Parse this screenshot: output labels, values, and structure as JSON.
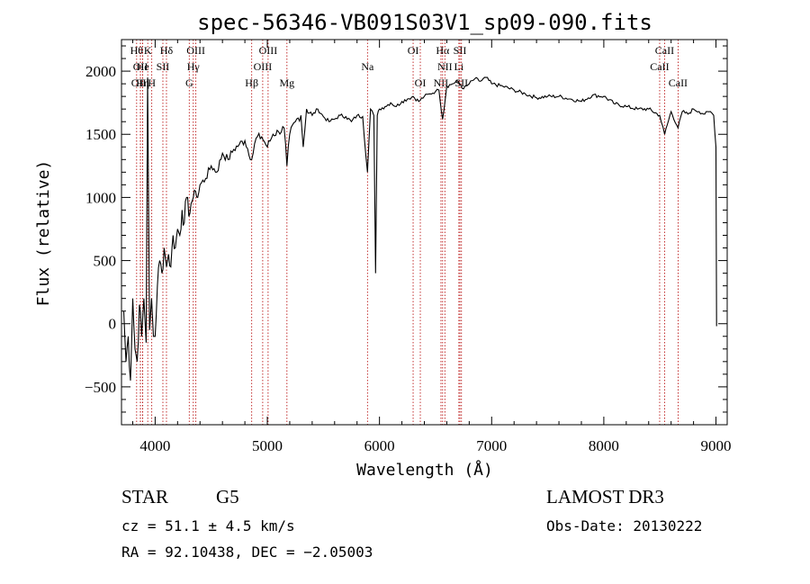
{
  "chart_data": {
    "type": "line",
    "title": "spec-56346-VB091S03V1_sp09-090.fits",
    "xlabel": "Wavelength (Å)",
    "ylabel": "Flux (relative)",
    "xlim": [
      3700,
      9100
    ],
    "ylim": [
      -800,
      2250
    ],
    "xticks": [
      {
        "v": 4000,
        "label": "4000"
      },
      {
        "v": 5000,
        "label": "5000"
      },
      {
        "v": 6000,
        "label": "6000"
      },
      {
        "v": 7000,
        "label": "7000"
      },
      {
        "v": 8000,
        "label": "8000"
      },
      {
        "v": 9000,
        "label": "9000"
      }
    ],
    "yticks": [
      {
        "v": -500,
        "label": "−500"
      },
      {
        "v": 0,
        "label": "0"
      },
      {
        "v": 500,
        "label": "500"
      },
      {
        "v": 1000,
        "label": "1000"
      },
      {
        "v": 1500,
        "label": "1500"
      },
      {
        "v": 2000,
        "label": "2000"
      }
    ],
    "series": [
      {
        "name": "flux",
        "x": [
          3720,
          3740,
          3760,
          3780,
          3800,
          3820,
          3840,
          3860,
          3880,
          3900,
          3920,
          3933,
          3950,
          3968,
          3985,
          4000,
          4020,
          4040,
          4060,
          4080,
          4101,
          4120,
          4140,
          4160,
          4180,
          4200,
          4220,
          4240,
          4260,
          4280,
          4300,
          4320,
          4340,
          4360,
          4380,
          4400,
          4450,
          4500,
          4550,
          4600,
          4650,
          4700,
          4750,
          4800,
          4861,
          4900,
          4950,
          5000,
          5050,
          5100,
          5150,
          5175,
          5200,
          5250,
          5300,
          5320,
          5350,
          5400,
          5450,
          5500,
          5550,
          5600,
          5650,
          5700,
          5750,
          5800,
          5850,
          5893,
          5920,
          5950,
          5965,
          5980,
          6000,
          6050,
          6100,
          6150,
          6200,
          6250,
          6300,
          6350,
          6400,
          6450,
          6500,
          6530,
          6563,
          6600,
          6650,
          6700,
          6750,
          6800,
          6850,
          6900,
          6950,
          7000,
          7100,
          7200,
          7300,
          7400,
          7500,
          7600,
          7700,
          7800,
          7900,
          8000,
          8100,
          8200,
          8300,
          8400,
          8498,
          8542,
          8600,
          8662,
          8700,
          8750,
          8800,
          8850,
          8900,
          8950,
          8980,
          9000,
          9005
        ],
        "y": [
          100,
          -300,
          -100,
          -450,
          200,
          -200,
          -300,
          150,
          -100,
          200,
          -150,
          1950,
          -50,
          200,
          -100,
          -100,
          300,
          500,
          400,
          600,
          450,
          550,
          450,
          700,
          600,
          750,
          700,
          900,
          800,
          1000,
          850,
          950,
          1000,
          1050,
          1000,
          1100,
          1150,
          1250,
          1200,
          1350,
          1300,
          1380,
          1420,
          1450,
          1300,
          1470,
          1480,
          1400,
          1500,
          1520,
          1550,
          1250,
          1500,
          1600,
          1650,
          1400,
          1700,
          1650,
          1700,
          1640,
          1600,
          1620,
          1650,
          1640,
          1600,
          1650,
          1640,
          1200,
          1700,
          1650,
          400,
          1650,
          1700,
          1720,
          1750,
          1720,
          1760,
          1780,
          1800,
          1760,
          1800,
          1820,
          1840,
          1850,
          1620,
          1880,
          1900,
          1920,
          1860,
          1900,
          1940,
          1920,
          1950,
          1900,
          1880,
          1850,
          1820,
          1790,
          1800,
          1800,
          1780,
          1760,
          1810,
          1800,
          1740,
          1720,
          1700,
          1700,
          1650,
          1500,
          1680,
          1550,
          1680,
          1660,
          1700,
          1680,
          1660,
          1680,
          1650,
          1400,
          -20
        ]
      }
    ],
    "spectral_lines": [
      {
        "x": 3835,
        "label": "Hθ",
        "row": 0
      },
      {
        "x": 3869,
        "label": "OII",
        "row": 1
      },
      {
        "x": 3869,
        "label": "OIII",
        "row": 2
      },
      {
        "x": 3889,
        "label": "Hη",
        "row": 2
      },
      {
        "x": 3934,
        "label": "K",
        "row": 0
      },
      {
        "x": 3970,
        "label": "H",
        "row": 2
      },
      {
        "x": 3889,
        "label": "He",
        "row": 1
      },
      {
        "x": 4069,
        "label": "SII",
        "row": 1
      },
      {
        "x": 4101,
        "label": "Hδ",
        "row": 0
      },
      {
        "x": 4304,
        "label": "G",
        "row": 2
      },
      {
        "x": 4340,
        "label": "Hγ",
        "row": 1
      },
      {
        "x": 4363,
        "label": "OIII",
        "row": 0
      },
      {
        "x": 4861,
        "label": "Hβ",
        "row": 2
      },
      {
        "x": 4959,
        "label": "OIII",
        "row": 1
      },
      {
        "x": 5007,
        "label": "OIII",
        "row": 0
      },
      {
        "x": 5175,
        "label": "Mg",
        "row": 2
      },
      {
        "x": 5893,
        "label": "Na",
        "row": 1
      },
      {
        "x": 6300,
        "label": "OI",
        "row": 0
      },
      {
        "x": 6364,
        "label": "OI",
        "row": 2
      },
      {
        "x": 6548,
        "label": "NII",
        "row": 2
      },
      {
        "x": 6563,
        "label": "Hα",
        "row": 0
      },
      {
        "x": 6583,
        "label": "NII",
        "row": 1
      },
      {
        "x": 6708,
        "label": "Li",
        "row": 1
      },
      {
        "x": 6717,
        "label": "SII",
        "row": 0
      },
      {
        "x": 6731,
        "label": "SII",
        "row": 2
      },
      {
        "x": 8498,
        "label": "CaII",
        "row": 1
      },
      {
        "x": 8542,
        "label": "CaII",
        "row": 0
      },
      {
        "x": 8662,
        "label": "CaII",
        "row": 2
      }
    ]
  },
  "info": {
    "class_label": "STAR",
    "subclass": "G5",
    "cz_text": "cz = 51.1 ± 4.5 km/s",
    "radec_text": "RA =  92.10438, DEC =  −2.05003",
    "survey": "LAMOST DR3",
    "obs_date": "Obs-Date: 20130222"
  }
}
